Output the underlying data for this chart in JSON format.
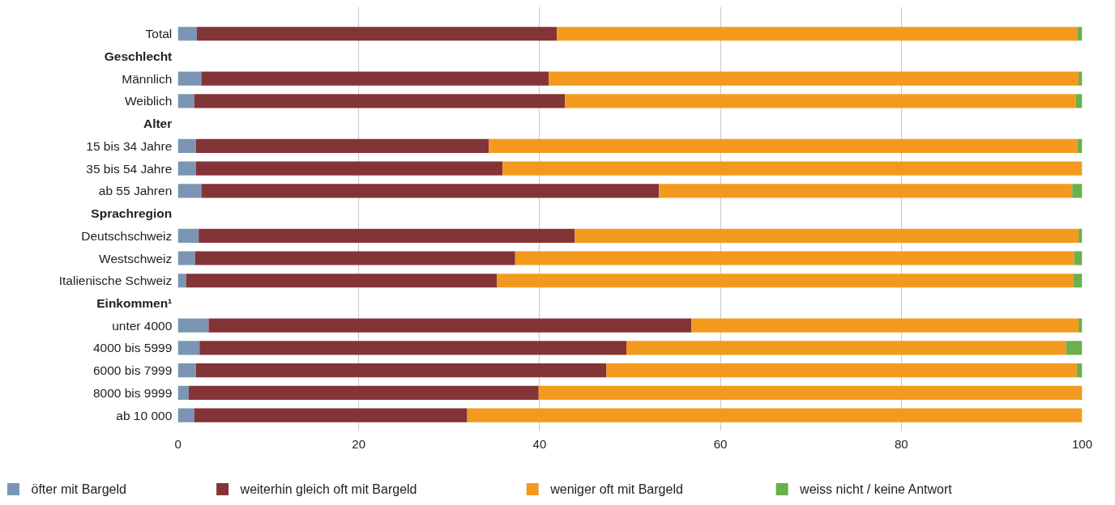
{
  "chart_data": {
    "type": "bar",
    "orientation": "horizontal",
    "stacked": true,
    "categories": [
      "Total",
      "Geschlecht",
      "Männlich",
      "Weiblich",
      "Alter",
      "15 bis 34 Jahre",
      "35 bis 54 Jahre",
      "ab 55 Jahren",
      "Sprachregion",
      "Deutschschweiz",
      "Westschweiz",
      "Italienische Schweiz",
      "Einkommen¹",
      "unter 4000",
      "4000 bis 5999",
      "6000 bis 7999",
      "8000 bis 9999",
      "ab 10 000"
    ],
    "series": [
      {
        "name": "öfter mit Bargeld",
        "color": "#7a96b4",
        "values": [
          2.1,
          null,
          2.6,
          1.8,
          null,
          2.0,
          2.0,
          2.6,
          null,
          2.3,
          1.9,
          0.9,
          null,
          3.4,
          2.4,
          2.0,
          1.2,
          1.8
        ]
      },
      {
        "name": "weiterhin gleich oft mit Bargeld",
        "color": "#833437",
        "values": [
          39.8,
          null,
          38.4,
          41.0,
          null,
          32.4,
          33.9,
          50.6,
          null,
          41.6,
          35.4,
          34.4,
          null,
          53.4,
          47.2,
          45.4,
          38.7,
          30.2
        ]
      },
      {
        "name": "weniger oft mit Bargeld",
        "color": "#f39a1e",
        "values": [
          57.6,
          null,
          58.6,
          56.5,
          null,
          65.1,
          64.0,
          45.7,
          null,
          55.7,
          61.8,
          63.7,
          null,
          42.8,
          48.6,
          52.0,
          60.1,
          68.0
        ]
      },
      {
        "name": "weiss nicht / keine Antwort",
        "color": "#6ab04c",
        "values": [
          0.5,
          null,
          0.4,
          0.7,
          null,
          0.5,
          0.1,
          1.1,
          null,
          0.4,
          0.9,
          1.0,
          null,
          0.4,
          1.8,
          0.6,
          0.0,
          0.0
        ]
      }
    ],
    "xlim": [
      0,
      100
    ],
    "xticks": [
      0,
      20,
      40,
      60,
      80,
      100
    ],
    "grid": "x",
    "legend": "bottom"
  }
}
